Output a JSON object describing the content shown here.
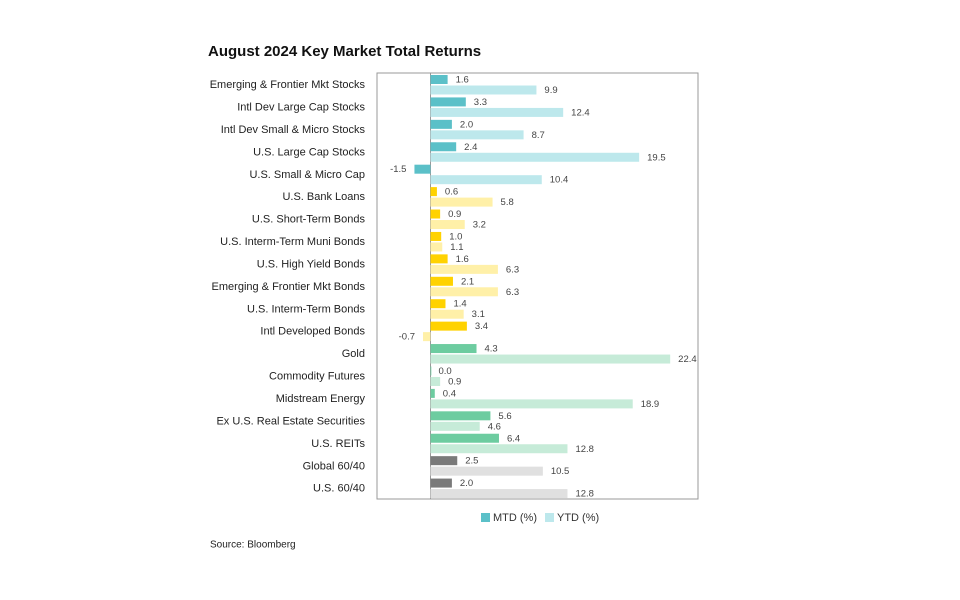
{
  "chart_data": {
    "type": "hbar",
    "title": "August 2024 Key Market Total Returns",
    "categories": [
      "Emerging & Frontier Mkt Stocks",
      "Intl Dev Large Cap Stocks",
      "Intl Dev Small & Micro Stocks",
      "U.S. Large Cap Stocks",
      "U.S. Small & Micro Cap",
      "U.S. Bank Loans",
      "U.S. Short-Term Bonds",
      "U.S. Interm-Term Muni Bonds",
      "U.S. High Yield Bonds",
      "Emerging & Frontier Mkt Bonds",
      "U.S. Interm-Term Bonds",
      "Intl Developed Bonds",
      "Gold",
      "Commodity Futures",
      "Midstream Energy",
      "Ex U.S. Real Estate Securities",
      "U.S. REITs",
      "Global 60/40",
      "U.S. 60/40"
    ],
    "series": [
      {
        "name": "MTD (%)",
        "color": "#5bc0c8",
        "colors": [
          "#5bc0c8",
          "#5bc0c8",
          "#5bc0c8",
          "#5bc0c8",
          "#5bc0c8",
          "#ffd200",
          "#ffd200",
          "#ffd200",
          "#ffd200",
          "#ffd200",
          "#ffd200",
          "#ffd200",
          "#6dcca0",
          "#6dcca0",
          "#6dcca0",
          "#6dcca0",
          "#6dcca0",
          "#7a7a7a",
          "#7a7a7a"
        ],
        "values": [
          1.6,
          3.3,
          2.0,
          2.4,
          -1.5,
          0.6,
          0.9,
          1.0,
          1.6,
          2.1,
          1.4,
          3.4,
          4.3,
          0.0,
          0.4,
          5.6,
          6.4,
          2.5,
          2.0
        ],
        "value_labels": [
          "1.6",
          "3.3",
          "2.0",
          "2.4",
          "-1.5",
          "0.6",
          "0.9",
          "1.0",
          "1.6",
          "2.1",
          "1.4",
          "3.4",
          "4.3",
          "0.0",
          "0.4",
          "5.6",
          "6.4",
          "2.5",
          "2.0"
        ]
      },
      {
        "name": "YTD (%)",
        "color": "#bde8ec",
        "colors": [
          "#bde8ec",
          "#bde8ec",
          "#bde8ec",
          "#bde8ec",
          "#bde8ec",
          "#fff0a8",
          "#fff0a8",
          "#fff0a8",
          "#fff0a8",
          "#fff0a8",
          "#fff0a8",
          "#fff0a8",
          "#c6ebd8",
          "#c6ebd8",
          "#c6ebd8",
          "#c6ebd8",
          "#c6ebd8",
          "#e0e0e0",
          "#e0e0e0"
        ],
        "values": [
          9.9,
          12.4,
          8.7,
          19.5,
          10.4,
          5.8,
          3.2,
          1.1,
          6.3,
          6.3,
          3.1,
          -0.7,
          22.4,
          0.9,
          18.9,
          4.6,
          12.8,
          10.5,
          12.8
        ],
        "value_labels": [
          "9.9",
          "12.4",
          "8.7",
          "19.5",
          "10.4",
          "5.8",
          "3.2",
          "1.1",
          "6.3",
          "6.3",
          "3.1",
          "-0.7",
          "22.4",
          "0.9",
          "18.9",
          "4.6",
          "12.8",
          "10.5",
          "12.8"
        ]
      }
    ],
    "xlim": [
      -5,
      25
    ],
    "source": "Source: Bloomberg"
  }
}
